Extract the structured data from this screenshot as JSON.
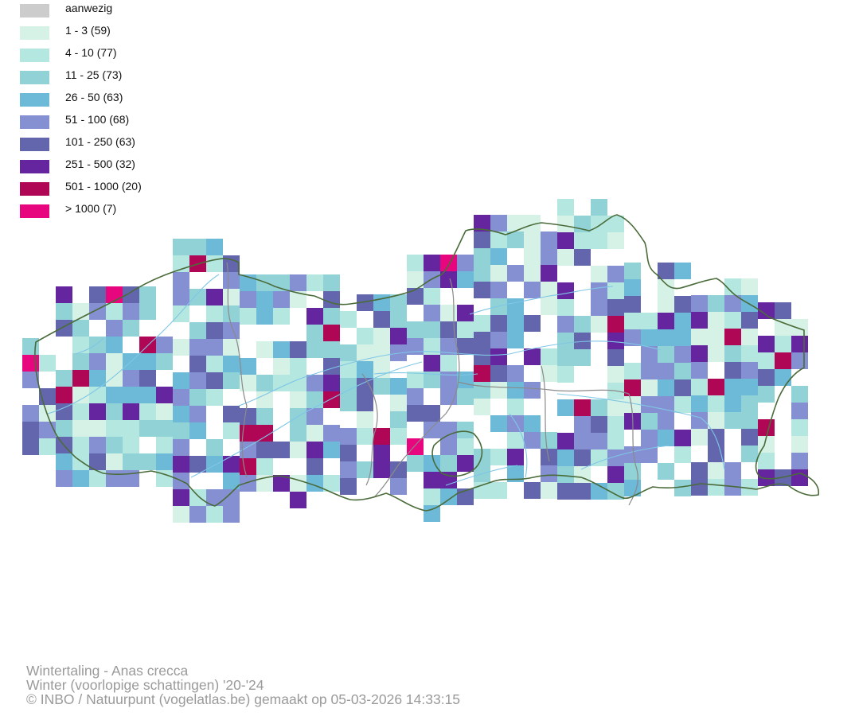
{
  "legend": [
    {
      "label": "aanwezig",
      "color": "#cccccc"
    },
    {
      "label": "1 - 3 (59)",
      "color": "#d6f1e5"
    },
    {
      "label": "4 - 10 (77)",
      "color": "#b4e7e0"
    },
    {
      "label": "11 - 25 (73)",
      "color": "#91d2d6"
    },
    {
      "label": "26 - 50 (63)",
      "color": "#6cb9d8"
    },
    {
      "label": "51 - 100 (68)",
      "color": "#8590d3"
    },
    {
      "label": "101 - 250 (63)",
      "color": "#6366ad"
    },
    {
      "label": "251 - 500 (32)",
      "color": "#64259f"
    },
    {
      "label": "501 - 1000 (20)",
      "color": "#af0755"
    },
    {
      "label": "> 1000 (7)",
      "color": "#e8067e"
    }
  ],
  "footer": {
    "species": "Wintertaling - Anas crecca",
    "period": "Winter (voorlopige schattingen) '20-'24",
    "credit": "© INBO / Natuurpunt (vogelatlas.be) gemaakt op 05-03-2026 14:33:15"
  },
  "map": {
    "boundary_color": "#4a6b3a",
    "river_color": "#7fc6e6",
    "province_color": "#8a8a8a"
  }
}
